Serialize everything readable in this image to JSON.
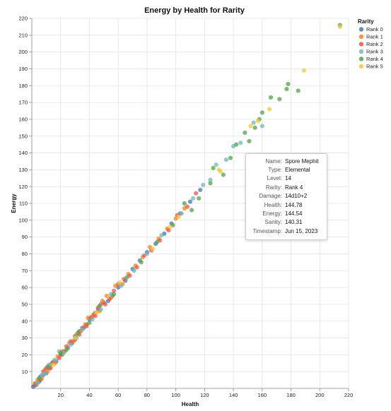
{
  "chart_data": {
    "type": "scatter",
    "title": "Energy by Health for Rarity",
    "xlabel": "Health",
    "ylabel": "Energy",
    "xlim": [
      0,
      220
    ],
    "ylim": [
      0,
      220
    ],
    "x_ticks": [
      20,
      40,
      60,
      80,
      100,
      120,
      140,
      160,
      180,
      200,
      220
    ],
    "y_ticks": [
      10,
      20,
      30,
      40,
      50,
      60,
      70,
      80,
      90,
      100,
      110,
      120,
      130,
      140,
      150,
      160,
      170,
      180,
      190,
      200,
      210,
      220
    ],
    "grid": true,
    "legend": {
      "title": "Rarity",
      "position": "top-right",
      "entries": [
        {
          "name": "Rank 0",
          "color": "#4c78a8"
        },
        {
          "name": "Rank 1",
          "color": "#f58518"
        },
        {
          "name": "Rank 2",
          "color": "#e45756"
        },
        {
          "name": "Rank 3",
          "color": "#72b7b2"
        },
        {
          "name": "Rank 4",
          "color": "#54a24b"
        },
        {
          "name": "Rank 5",
          "color": "#eeca3b"
        }
      ]
    },
    "point_opacity": 0.75,
    "series": [
      {
        "name": "Rank 0",
        "points": [
          [
            1,
            1
          ],
          [
            2,
            2
          ],
          [
            3,
            3
          ],
          [
            5,
            4
          ],
          [
            6,
            7
          ],
          [
            8,
            8
          ],
          [
            10,
            9
          ],
          [
            12,
            12
          ],
          [
            14,
            15
          ],
          [
            17,
            16
          ],
          [
            20,
            20
          ],
          [
            22,
            22
          ],
          [
            25,
            24
          ],
          [
            28,
            27
          ],
          [
            30,
            31
          ],
          [
            33,
            34
          ],
          [
            36,
            36
          ],
          [
            38,
            38
          ],
          [
            40,
            41
          ],
          [
            43,
            44
          ],
          [
            46,
            47
          ],
          [
            50,
            51
          ],
          [
            53,
            52
          ],
          [
            56,
            55
          ],
          [
            60,
            60
          ],
          [
            65,
            64
          ],
          [
            70,
            71
          ],
          [
            75,
            76
          ],
          [
            80,
            81
          ],
          [
            86,
            86
          ],
          [
            92,
            92
          ],
          [
            97,
            98
          ],
          [
            103,
            104
          ],
          [
            110,
            111
          ],
          [
            117,
            118
          ]
        ]
      },
      {
        "name": "Rank 1",
        "points": [
          [
            2,
            3
          ],
          [
            4,
            5
          ],
          [
            7,
            6
          ],
          [
            9,
            11
          ],
          [
            11,
            10
          ],
          [
            13,
            14
          ],
          [
            16,
            15
          ],
          [
            18,
            19
          ],
          [
            21,
            22
          ],
          [
            23,
            22
          ],
          [
            26,
            27
          ],
          [
            29,
            28
          ],
          [
            31,
            32
          ],
          [
            34,
            34
          ],
          [
            37,
            38
          ],
          [
            39,
            42
          ],
          [
            42,
            43
          ],
          [
            44,
            45
          ],
          [
            47,
            46
          ],
          [
            49,
            52
          ],
          [
            52,
            55
          ],
          [
            55,
            54
          ],
          [
            58,
            61
          ],
          [
            63,
            62
          ],
          [
            67,
            68
          ],
          [
            72,
            73
          ],
          [
            77,
            78
          ],
          [
            82,
            84
          ],
          [
            88,
            89
          ],
          [
            94,
            95
          ],
          [
            100,
            101
          ],
          [
            106,
            107
          ]
        ]
      },
      {
        "name": "Rank 2",
        "points": [
          [
            3,
            2
          ],
          [
            6,
            5
          ],
          [
            8,
            10
          ],
          [
            10,
            12
          ],
          [
            13,
            12
          ],
          [
            15,
            16
          ],
          [
            19,
            18
          ],
          [
            21,
            20
          ],
          [
            24,
            25
          ],
          [
            27,
            28
          ],
          [
            30,
            29
          ],
          [
            33,
            32
          ],
          [
            35,
            36
          ],
          [
            38,
            37
          ],
          [
            41,
            42
          ],
          [
            44,
            43
          ],
          [
            46,
            48
          ],
          [
            48,
            50
          ],
          [
            51,
            50
          ],
          [
            54,
            53
          ],
          [
            57,
            58
          ],
          [
            60,
            62
          ],
          [
            64,
            65
          ],
          [
            68,
            67
          ],
          [
            73,
            72
          ],
          [
            78,
            79
          ],
          [
            83,
            82
          ],
          [
            89,
            88
          ],
          [
            95,
            94
          ],
          [
            101,
            103
          ],
          [
            108,
            108
          ],
          [
            114,
            116
          ]
        ]
      },
      {
        "name": "Rank 3",
        "points": [
          [
            4,
            3
          ],
          [
            7,
            8
          ],
          [
            9,
            9
          ],
          [
            12,
            14
          ],
          [
            16,
            17
          ],
          [
            19,
            22
          ],
          [
            22,
            21
          ],
          [
            27,
            26
          ],
          [
            31,
            30
          ],
          [
            35,
            35
          ],
          [
            42,
            41
          ],
          [
            48,
            47
          ],
          [
            55,
            56
          ],
          [
            62,
            61
          ],
          [
            71,
            70
          ],
          [
            80,
            80
          ],
          [
            90,
            91
          ],
          [
            104,
            104
          ],
          [
            112,
            113
          ],
          [
            119,
            121
          ],
          [
            124,
            124
          ],
          [
            128,
            133
          ],
          [
            135,
            136
          ],
          [
            140,
            144
          ],
          [
            145,
            146
          ],
          [
            154,
            158
          ],
          [
            160,
            156
          ]
        ]
      },
      {
        "name": "Rank 4",
        "points": [
          [
            5,
            6
          ],
          [
            11,
            13
          ],
          [
            20,
            21
          ],
          [
            24,
            23
          ],
          [
            32,
            33
          ],
          [
            40,
            39
          ],
          [
            47,
            49
          ],
          [
            57,
            56
          ],
          [
            66,
            66
          ],
          [
            76,
            75
          ],
          [
            87,
            87
          ],
          [
            98,
            97
          ],
          [
            106,
            110
          ],
          [
            111,
            106
          ],
          [
            116,
            113
          ],
          [
            124,
            122
          ],
          [
            126,
            131
          ],
          [
            133,
            127
          ],
          [
            138,
            137
          ],
          [
            142,
            145
          ],
          [
            148,
            152
          ],
          [
            151,
            147
          ],
          [
            155,
            155
          ],
          [
            158,
            160
          ],
          [
            160,
            164
          ],
          [
            166,
            173
          ],
          [
            172,
            172
          ],
          [
            177,
            178
          ],
          [
            178,
            181
          ],
          [
            185,
            177
          ],
          [
            214,
            216
          ]
        ]
      },
      {
        "name": "Rank 5",
        "points": [
          [
            15,
            14
          ],
          [
            30,
            30
          ],
          [
            45,
            45
          ],
          [
            61,
            63
          ],
          [
            84,
            83
          ],
          [
            96,
            96
          ],
          [
            102,
            102
          ],
          [
            130,
            130
          ],
          [
            131,
            129
          ],
          [
            152,
            156
          ],
          [
            157,
            159
          ],
          [
            165,
            166
          ],
          [
            189,
            189
          ],
          [
            214,
            215
          ]
        ]
      }
    ]
  },
  "tooltip": {
    "rows": [
      {
        "key": "Name:",
        "value": "Spore Mephit"
      },
      {
        "key": "Type:",
        "value": "Elemental"
      },
      {
        "key": "Level:",
        "value": "14"
      },
      {
        "key": "Rarity:",
        "value": "Rank 4"
      },
      {
        "key": "Damage:",
        "value": "14d10+2"
      },
      {
        "key": "Health:",
        "value": "144.78"
      },
      {
        "key": "Energy:",
        "value": "144.54"
      },
      {
        "key": "Sanity:",
        "value": "140.31"
      },
      {
        "key": "Timestamp:",
        "value": "Jun 15, 2023"
      }
    ]
  }
}
